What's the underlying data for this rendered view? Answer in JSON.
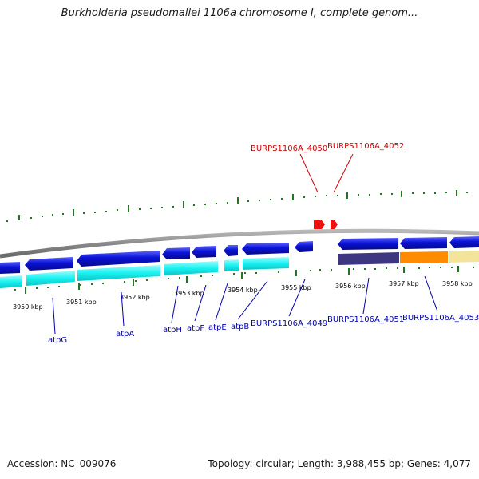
{
  "title": "Burkholderia pseudomallei 1106a chromosome I, complete genom...",
  "footer": {
    "accession": "Accession: NC_009076",
    "summary": "Topology: circular; Length: 3,988,455 bp; Genes: 4,077"
  },
  "ticks": {
    "kbp_3950": "3950 kbp",
    "kbp_3951": "3951 kbp",
    "kbp_3952": "3952 kbp",
    "kbp_3953": "3953 kbp",
    "kbp_3954": "3954 kbp",
    "kbp_3955": "3955 kbp",
    "kbp_3956": "3956 kbp",
    "kbp_3957": "3957 kbp",
    "kbp_3958": "3958 kbp"
  },
  "genes": {
    "burps_4050": "BURPS1106A_4050",
    "burps_4052": "BURPS1106A_4052",
    "atpG": "atpG",
    "atpA": "atpA",
    "atpH": "atpH",
    "atpF": "atpF",
    "atpE": "atpE",
    "atpB": "atpB",
    "burps_4049": "BURPS1106A_4049",
    "burps_4051": "BURPS1106A_4051",
    "burps_4053": "BURPS1106A_4053"
  },
  "colors": {
    "backbone": "#8a8a8a",
    "gene_blue": "#0a12d6",
    "cds_cyan": "#19f2f2",
    "track_purple": "#3d3680",
    "track_orange": "#ff8c00",
    "track_yellow": "#f4e49a",
    "feature_red": "#ee1111",
    "gc_tick_green": "#1f7a1f",
    "label_red": "#cc0000",
    "label_blue": "#0000aa"
  }
}
